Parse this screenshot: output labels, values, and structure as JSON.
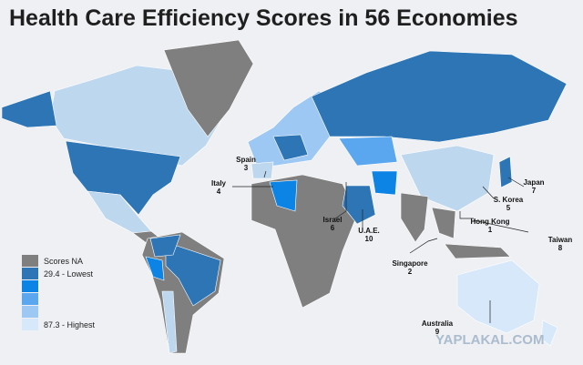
{
  "title": "Health Care Efficiency Scores in 56 Economies",
  "legend": {
    "colors": [
      "#7f7f7f",
      "#2e75b6",
      "#0b84e6",
      "#5aa7f0",
      "#9dc8f4",
      "#d6e8fa"
    ],
    "labels": [
      "Scores NA",
      "29.4 - Lowest",
      "87.3 - Highest"
    ]
  },
  "annotations": [
    {
      "name": "Spain",
      "rank": 3
    },
    {
      "name": "Italy",
      "rank": 4
    },
    {
      "name": "Israel",
      "rank": 6
    },
    {
      "name": "U.A.E.",
      "rank": 10
    },
    {
      "name": "Singapore",
      "rank": 2
    },
    {
      "name": "Hong Kong",
      "rank": 1
    },
    {
      "name": "S. Korea",
      "rank": 5
    },
    {
      "name": "Japan",
      "rank": 7
    },
    {
      "name": "Taiwan",
      "rank": 8
    },
    {
      "name": "Australia",
      "rank": 9
    }
  ],
  "watermark": "YAPLAKAL.COM"
}
